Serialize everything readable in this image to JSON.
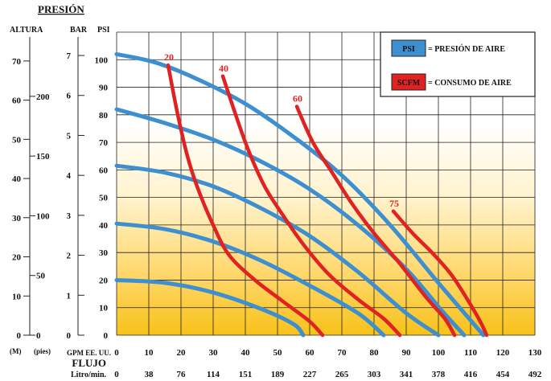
{
  "chart_data": {
    "type": "line",
    "title": "PRESIÓN",
    "pressure_axes": {
      "altura_header": "ALTURA",
      "bar_header": "BAR",
      "psi_header": "PSI",
      "meters_ticks": [
        0,
        10,
        20,
        30,
        40,
        50,
        60,
        70
      ],
      "meters_unit": "(M)",
      "feet_ticks": [
        0,
        50,
        100,
        150,
        200
      ],
      "feet_unit": "(pies)",
      "bar_ticks": [
        0,
        1,
        2,
        3,
        4,
        5,
        6,
        7
      ],
      "psi_ticks": [
        0,
        10,
        20,
        30,
        40,
        50,
        60,
        70,
        80,
        90,
        100
      ],
      "psi_range": [
        0,
        110
      ]
    },
    "x_axes": {
      "gpm_label": "GPM EE. UU.",
      "gpm_ticks": [
        0,
        10,
        20,
        30,
        40,
        50,
        60,
        70,
        80,
        90,
        100,
        110,
        120,
        130
      ],
      "gpm_range": [
        0,
        130
      ],
      "flow_label": "FLUJO",
      "litro_label": "Litro/min.",
      "litro_ticks": [
        "0",
        "38",
        "76",
        "114",
        "151",
        "189",
        "227",
        "265",
        "303",
        "341",
        "378",
        "416",
        "454",
        "492"
      ]
    },
    "legend": {
      "position": "top-right",
      "items": [
        {
          "key": "PSI",
          "text": "= PRESIÓN DE AIRE",
          "color": "#3d8fcf"
        },
        {
          "key": "SCFM",
          "text": "= CONSUMO DE AIRE",
          "color": "#e02222"
        }
      ]
    },
    "pressure_series": [
      {
        "color": "#3d8fcf",
        "points": [
          [
            0,
            102
          ],
          [
            12,
            99
          ],
          [
            25,
            93
          ],
          [
            40,
            84
          ],
          [
            55,
            72
          ],
          [
            70,
            58
          ],
          [
            85,
            40
          ],
          [
            100,
            19
          ],
          [
            114,
            0
          ]
        ]
      },
      {
        "color": "#3d8fcf",
        "points": [
          [
            0,
            82
          ],
          [
            15,
            77
          ],
          [
            30,
            71
          ],
          [
            45,
            63
          ],
          [
            60,
            53
          ],
          [
            75,
            40
          ],
          [
            90,
            24
          ],
          [
            101,
            9
          ],
          [
            108,
            0
          ]
        ]
      },
      {
        "color": "#3d8fcf",
        "points": [
          [
            0,
            61.5
          ],
          [
            15,
            59
          ],
          [
            30,
            54
          ],
          [
            45,
            46
          ],
          [
            60,
            36
          ],
          [
            75,
            23
          ],
          [
            90,
            8
          ],
          [
            100,
            0
          ]
        ]
      },
      {
        "color": "#3d8fcf",
        "points": [
          [
            0,
            40.5
          ],
          [
            15,
            38.5
          ],
          [
            30,
            34
          ],
          [
            45,
            27
          ],
          [
            60,
            18
          ],
          [
            75,
            8
          ],
          [
            83,
            0
          ]
        ]
      },
      {
        "color": "#3d8fcf",
        "points": [
          [
            0,
            20
          ],
          [
            15,
            19
          ],
          [
            30,
            15.5
          ],
          [
            45,
            9.5
          ],
          [
            55,
            4
          ],
          [
            58,
            0
          ]
        ]
      }
    ],
    "air_consumption_series": [
      {
        "label": "20",
        "color": "#e02222",
        "points": [
          [
            16,
            98
          ],
          [
            19,
            80
          ],
          [
            22,
            65
          ],
          [
            25,
            54
          ],
          [
            30,
            40
          ],
          [
            35,
            29
          ],
          [
            43,
            20
          ],
          [
            52,
            12
          ],
          [
            60,
            5
          ],
          [
            64,
            0
          ]
        ]
      },
      {
        "label": "40",
        "color": "#e02222",
        "points": [
          [
            33,
            94
          ],
          [
            37,
            80
          ],
          [
            41,
            67
          ],
          [
            46,
            54
          ],
          [
            52,
            43
          ],
          [
            58,
            33
          ],
          [
            66,
            22
          ],
          [
            75,
            13
          ],
          [
            83,
            6
          ],
          [
            88,
            0
          ]
        ]
      },
      {
        "label": "60",
        "color": "#e02222",
        "points": [
          [
            56,
            83
          ],
          [
            61,
            70
          ],
          [
            67,
            59
          ],
          [
            73,
            48
          ],
          [
            80,
            37
          ],
          [
            88,
            26
          ],
          [
            96,
            14
          ],
          [
            102,
            6
          ],
          [
            105,
            0
          ]
        ]
      },
      {
        "label": "75",
        "color": "#e02222",
        "points": [
          [
            86,
            45
          ],
          [
            92,
            37
          ],
          [
            98,
            30
          ],
          [
            104,
            22
          ],
          [
            109,
            13
          ],
          [
            113,
            5
          ],
          [
            115,
            0
          ]
        ]
      }
    ]
  }
}
